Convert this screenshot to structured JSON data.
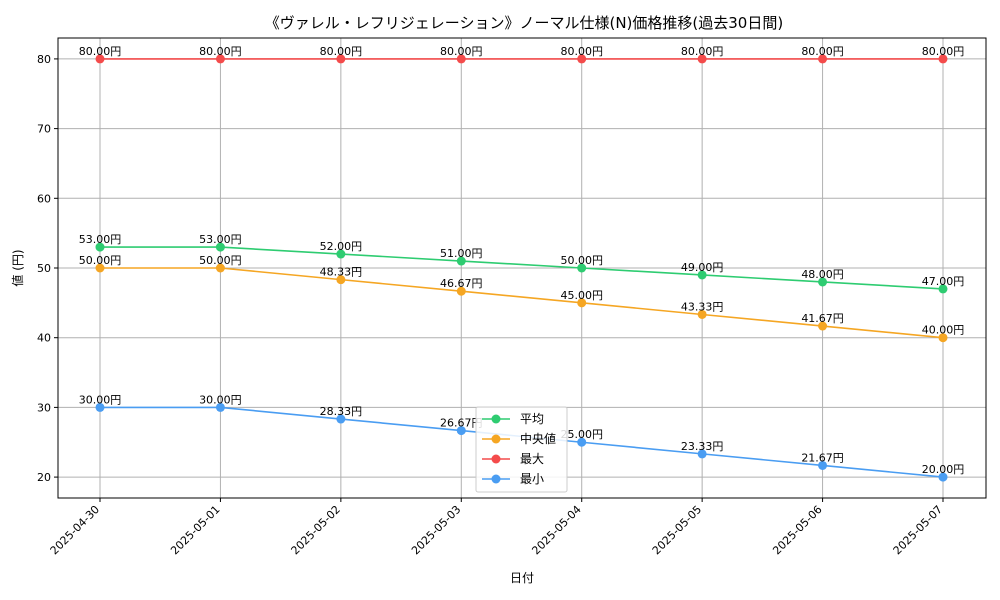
{
  "chart_data": {
    "type": "line",
    "title": "《ヴァレル・レフリジェレーション》ノーマル仕様(N)価格推移(過去30日間)",
    "xlabel": "日付",
    "ylabel": "値 (円)",
    "categories": [
      "2025-04-30",
      "2025-05-01",
      "2025-05-02",
      "2025-05-03",
      "2025-05-04",
      "2025-05-05",
      "2025-05-06",
      "2025-05-07"
    ],
    "ylim": [
      17,
      83
    ],
    "yticks": [
      20,
      30,
      40,
      50,
      60,
      70,
      80
    ],
    "grid": true,
    "legend": "bottom-center",
    "unit_suffix": "円",
    "series": [
      {
        "name": "平均",
        "color": "#2ecc71",
        "values": [
          53.0,
          53.0,
          52.0,
          51.0,
          50.0,
          49.0,
          48.0,
          47.0
        ],
        "labels": [
          "53.00円",
          "53.00円",
          "52.00円",
          "51.00円",
          "50.00円",
          "49.00円",
          "48.00円",
          "47.00円"
        ]
      },
      {
        "name": "中央値",
        "color": "#f5a623",
        "values": [
          50.0,
          50.0,
          48.33,
          46.67,
          45.0,
          43.33,
          41.67,
          40.0
        ],
        "labels": [
          "50.00円",
          "50.00円",
          "48.33円",
          "46.67円",
          "45.00円",
          "43.33円",
          "41.67円",
          "40.00円"
        ]
      },
      {
        "name": "最大",
        "color": "#f44b4b",
        "values": [
          80.0,
          80.0,
          80.0,
          80.0,
          80.0,
          80.0,
          80.0,
          80.0
        ],
        "labels": [
          "80.00円",
          "80.00円",
          "80.00円",
          "80.00円",
          "80.00円",
          "80.00円",
          "80.00円",
          "80.00円"
        ]
      },
      {
        "name": "最小",
        "color": "#4a9df2",
        "values": [
          30.0,
          30.0,
          28.33,
          26.67,
          25.0,
          23.33,
          21.67,
          20.0
        ],
        "labels": [
          "30.00円",
          "30.00円",
          "28.33円",
          "26.67円",
          "25.00円",
          "23.33円",
          "21.67円",
          "20.00円"
        ]
      }
    ]
  }
}
